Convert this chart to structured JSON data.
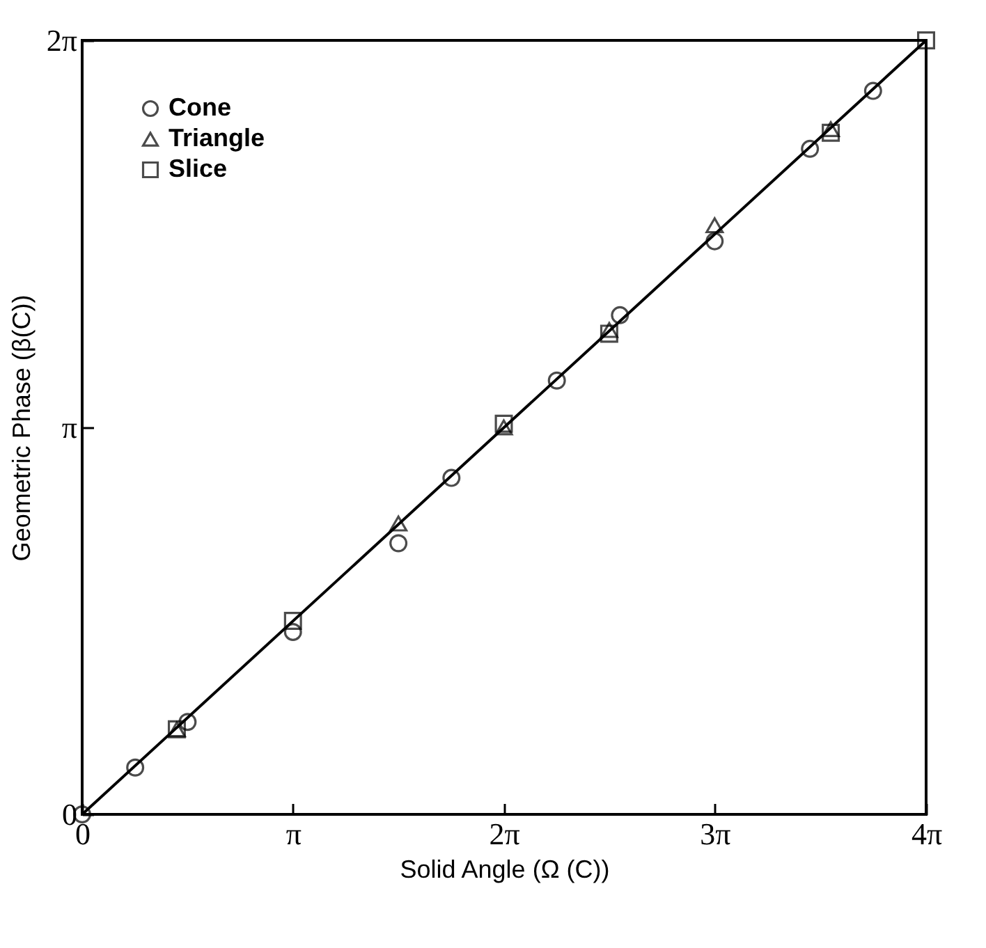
{
  "chart_data": {
    "type": "scatter",
    "xlabel": "Solid Angle (Ω (C))",
    "ylabel": "Geometric Phase (β(C))",
    "xlim": [
      0,
      12.57
    ],
    "ylim": [
      0,
      6.28
    ],
    "xticks": [
      0,
      {
        "value": 3.14,
        "label": "π"
      },
      {
        "value": 6.28,
        "label": "2π"
      },
      {
        "value": 9.42,
        "label": "3π"
      },
      {
        "value": 12.57,
        "label": "4π"
      }
    ],
    "yticks": [
      0,
      {
        "value": 3.14,
        "label": "π"
      },
      {
        "value": 6.28,
        "label": "2π"
      }
    ],
    "grid": false,
    "legend": "top left",
    "series": [
      {
        "name": "Cone",
        "marker": "circle",
        "color": "#000000",
        "x": [
          0,
          0.79,
          1.57,
          3.14,
          4.71,
          5.5,
          7.07,
          8.01,
          9.42,
          10.84,
          11.78
        ],
        "values": [
          0,
          0.38,
          0.75,
          1.48,
          2.2,
          2.73,
          3.52,
          4.05,
          4.65,
          5.4,
          5.87
        ]
      },
      {
        "name": "Triangle",
        "marker": "triangle",
        "color": "#000000",
        "x": [
          1.41,
          4.71,
          6.28,
          7.85,
          9.42,
          11.15
        ],
        "values": [
          0.69,
          2.36,
          3.14,
          3.93,
          4.78,
          5.56
        ]
      },
      {
        "name": "Slice",
        "marker": "square",
        "color": "#000000",
        "x": [
          1.41,
          3.14,
          6.28,
          7.85,
          11.15,
          12.57
        ],
        "values": [
          0.69,
          1.57,
          3.17,
          3.9,
          5.53,
          6.28
        ]
      },
      {
        "type": "line",
        "marker": "none",
        "line_style": "solid",
        "color": "#000000",
        "x": [
          0,
          12.57
        ],
        "values": [
          0,
          6.28
        ]
      }
    ]
  }
}
